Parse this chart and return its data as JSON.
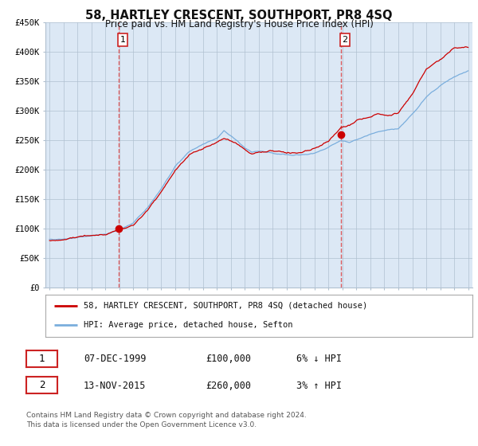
{
  "title": "58, HARTLEY CRESCENT, SOUTHPORT, PR8 4SQ",
  "subtitle": "Price paid vs. HM Land Registry's House Price Index (HPI)",
  "ylabel_ticks": [
    "£0",
    "£50K",
    "£100K",
    "£150K",
    "£200K",
    "£250K",
    "£300K",
    "£350K",
    "£400K",
    "£450K"
  ],
  "ytick_values": [
    0,
    50000,
    100000,
    150000,
    200000,
    250000,
    300000,
    350000,
    400000,
    450000
  ],
  "ylim": [
    0,
    450000
  ],
  "xlim_start": 1994.7,
  "xlim_end": 2025.3,
  "plot_bg_color": "#dce8f5",
  "grid_color": "#b0c0d0",
  "red_line_color": "#cc0000",
  "blue_line_color": "#7aaedd",
  "marker1_date": 1999.93,
  "marker1_value": 100000,
  "marker2_date": 2015.87,
  "marker2_value": 260000,
  "vline_color": "#dd4444",
  "legend_label_red": "58, HARTLEY CRESCENT, SOUTHPORT, PR8 4SQ (detached house)",
  "legend_label_blue": "HPI: Average price, detached house, Sefton",
  "table_row1_date": "07-DEC-1999",
  "table_row1_price": "£100,000",
  "table_row1_hpi": "6% ↓ HPI",
  "table_row2_date": "13-NOV-2015",
  "table_row2_price": "£260,000",
  "table_row2_hpi": "3% ↑ HPI",
  "footnote1": "Contains HM Land Registry data © Crown copyright and database right 2024.",
  "footnote2": "This data is licensed under the Open Government Licence v3.0."
}
